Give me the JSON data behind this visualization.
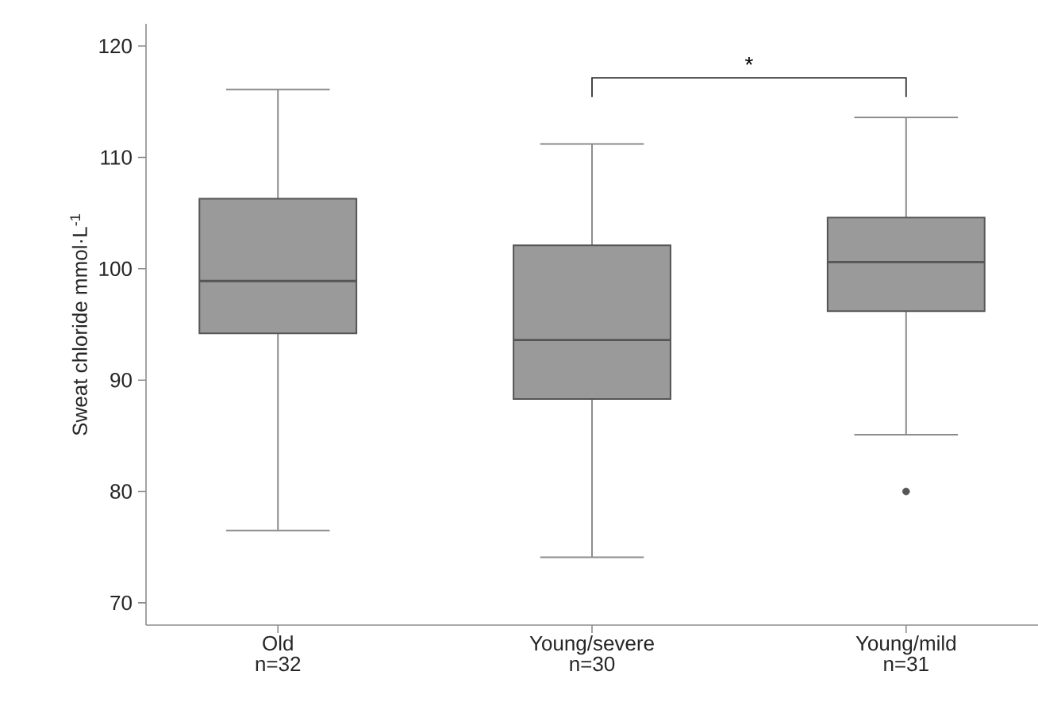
{
  "chart_data": {
    "type": "box",
    "ylabel": "Sweat chloride mmol·L$^{-1}$",
    "categories": [
      "Old n=32",
      "Young/severe n=30",
      "Young/mild n=31"
    ],
    "boxes": [
      {
        "low": 76.5,
        "q1": 94.2,
        "median": 98.9,
        "q3": 106.3,
        "high": 116.1
      },
      {
        "low": 74.1,
        "q1": 88.3,
        "median": 93.6,
        "q3": 102.1,
        "high": 111.2
      },
      {
        "low": 85.1,
        "q1": 96.2,
        "median": 100.6,
        "q3": 104.6,
        "high": 113.6,
        "outliers": [
          80.0
        ]
      }
    ],
    "color": "#9a9a9a",
    "ylim": [
      68,
      122
    ],
    "yticks": [
      70,
      80,
      90,
      100,
      110,
      120
    ],
    "annotations": [
      "*"
    ]
  }
}
